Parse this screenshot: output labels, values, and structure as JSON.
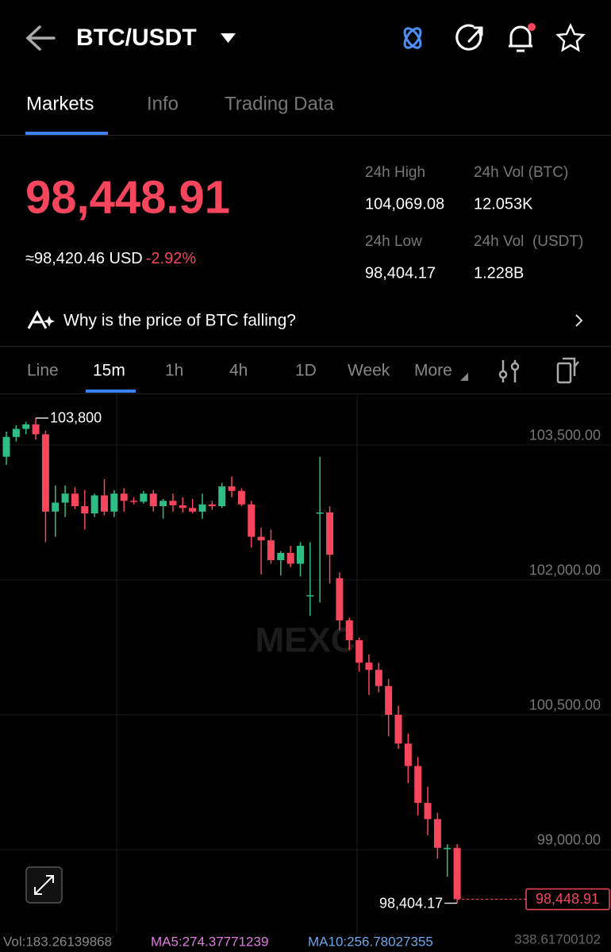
{
  "header": {
    "pair": "BTC/USDT"
  },
  "tabs": [
    "Markets",
    "Info",
    "Trading Data"
  ],
  "price": {
    "last": "98,448.91",
    "approx": "≈98,420.46",
    "currency": "USD",
    "change": "-2.92%"
  },
  "stats": [
    {
      "label": "24h High",
      "value": "104,069.08"
    },
    {
      "label": "24h Vol (BTC)",
      "value": "12.053K"
    },
    {
      "label": "24h Low",
      "value": "98,404.17"
    },
    {
      "label": "24h Vol  (USDT)",
      "value": "1.228B"
    }
  ],
  "insight": "Why is the price of BTC falling?",
  "intervals": [
    "Line",
    "15m",
    "1h",
    "4h",
    "1D",
    "Week",
    "More"
  ],
  "watermark": "MEXC",
  "footer": {
    "vol": "Vol:183.26139868",
    "ma5": "MA5:274.37771239",
    "ma10": "MA10:256.78027355",
    "right": "338.61700102"
  },
  "chart_data": {
    "type": "candlestick",
    "up_color": "#2ebd85",
    "down_color": "#f6465d",
    "open": [
      103370,
      103590,
      103680,
      103730,
      103620,
      102760,
      102860,
      102960,
      102820,
      102740,
      102940,
      102760,
      102960,
      102880,
      102870,
      102960,
      102820,
      102880,
      102830,
      102800,
      102760,
      102840,
      102820,
      103040,
      102990,
      102840,
      102480,
      102440,
      102220,
      102300,
      102180,
      101830,
      102750,
      102750,
      102020,
      101550,
      101330,
      101080,
      101000,
      100820,
      100500,
      100180,
      99930,
      99520,
      99340,
      99020,
      99020
    ],
    "high": [
      103650,
      103720,
      103760,
      103800,
      103660,
      103050,
      103050,
      103030,
      103000,
      102960,
      103120,
      103000,
      103020,
      102920,
      102990,
      103000,
      102900,
      102960,
      102920,
      102900,
      102960,
      102880,
      103080,
      103150,
      103020,
      102880,
      102580,
      102560,
      102320,
      102380,
      102420,
      102420,
      103370,
      102820,
      102080,
      101580,
      101360,
      101170,
      101080,
      100900,
      100600,
      100290,
      100030,
      99700,
      99410,
      99060,
      99060
    ],
    "low": [
      103280,
      103540,
      103620,
      103560,
      102420,
      102480,
      102700,
      102790,
      102560,
      102700,
      102720,
      102700,
      102760,
      102840,
      102850,
      102760,
      102680,
      102760,
      102750,
      102740,
      102680,
      102780,
      102800,
      102920,
      102820,
      102360,
      102060,
      102180,
      102050,
      102140,
      102040,
      101600,
      101750,
      101960,
      101440,
      101220,
      100980,
      100720,
      100750,
      100260,
      100120,
      99740,
      99380,
      99160,
      98900,
      98700,
      98404.17
    ],
    "close": [
      103590,
      103680,
      103730,
      103620,
      102760,
      102860,
      102960,
      102820,
      102740,
      102940,
      102760,
      102960,
      102880,
      102870,
      102960,
      102820,
      102880,
      102830,
      102800,
      102760,
      102840,
      102820,
      103040,
      102990,
      102840,
      102480,
      102440,
      102220,
      102300,
      102180,
      102380,
      101830,
      102750,
      102280,
      101550,
      101330,
      101080,
      101000,
      100820,
      100500,
      100180,
      99930,
      99520,
      99340,
      99020,
      99020,
      98448.91
    ],
    "ylim": [
      98050,
      104100
    ],
    "yticks": [
      {
        "value": 103500,
        "label": "103,500.00"
      },
      {
        "value": 102000,
        "label": "102,000.00"
      },
      {
        "value": 100500,
        "label": "100,500.00"
      },
      {
        "value": 99000,
        "label": "99,000.00"
      }
    ],
    "grid": true,
    "annotations": [
      {
        "value": 103800,
        "label": "103,800"
      },
      {
        "value": 98404.17,
        "label": "98,404.17"
      }
    ],
    "last_price": {
      "value": 98448.91,
      "label": "98,448.91"
    }
  }
}
